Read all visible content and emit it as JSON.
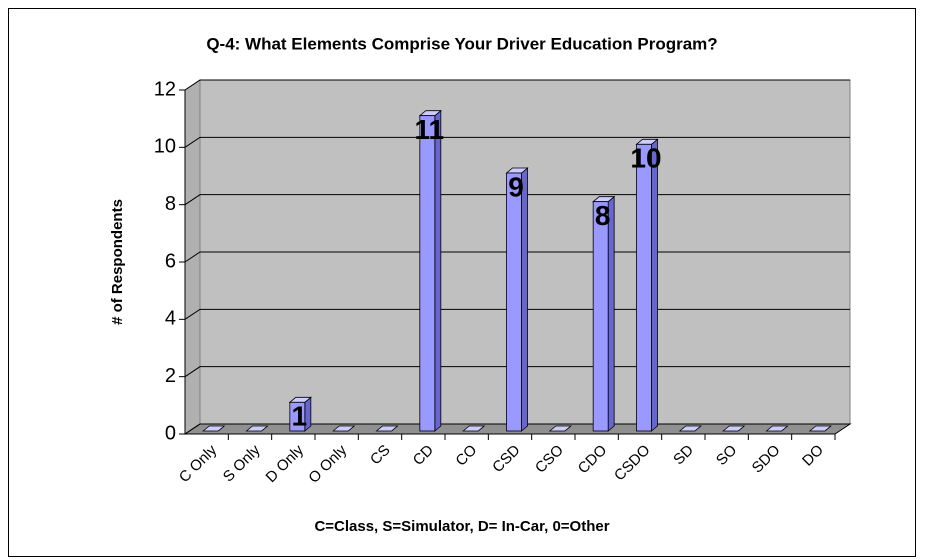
{
  "chart_data": {
    "type": "bar3d",
    "title": "Q-4: What Elements Comprise Your Driver Education Program?",
    "y_label": "# of Respondents",
    "x_label": "C=Class, S=Simulator, D= In-Car, 0=Other",
    "categories": [
      "C Only",
      "S Only",
      "D Only",
      "O Only",
      "CS",
      "CD",
      "CO",
      "CSD",
      "CSO",
      "CDO",
      "CSDO",
      "SD",
      "SO",
      "SDO",
      "DO"
    ],
    "values": [
      0,
      0,
      1,
      0,
      0,
      11,
      0,
      9,
      0,
      8,
      10,
      0,
      0,
      0,
      0
    ],
    "color": "#9999ff",
    "ylim": [
      0,
      12
    ],
    "yticks": [
      0,
      2,
      4,
      6,
      8,
      10,
      12
    ],
    "grid": true
  }
}
